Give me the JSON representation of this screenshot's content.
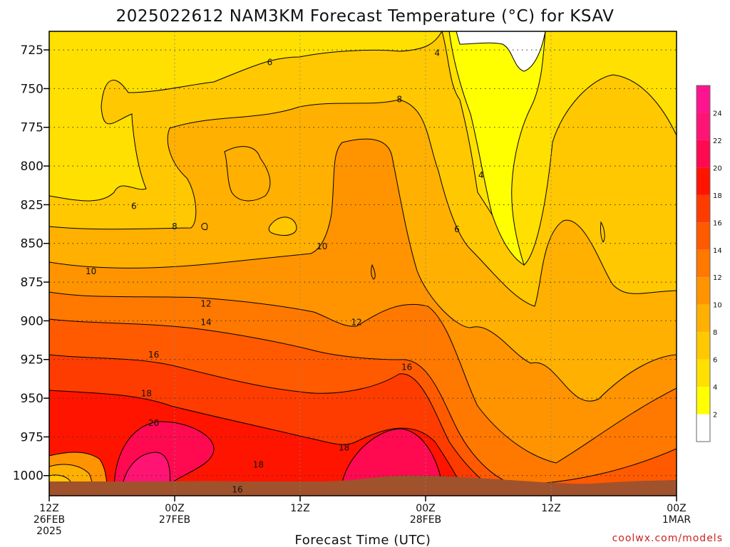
{
  "chart_data": {
    "type": "contour",
    "title": "2025022612 NAM3KM Forecast Temperature (°C) for KSAV",
    "xlabel": "Forecast Time (UTC)",
    "ylabel": "",
    "x_ticks": [
      {
        "hour": 0,
        "lines": [
          "12Z",
          "26FEB",
          "2025"
        ]
      },
      {
        "hour": 12,
        "lines": [
          "00Z",
          "27FEB"
        ]
      },
      {
        "hour": 24,
        "lines": [
          "12Z"
        ]
      },
      {
        "hour": 36,
        "lines": [
          "00Z",
          "28FEB"
        ]
      },
      {
        "hour": 48,
        "lines": [
          "12Z"
        ]
      },
      {
        "hour": 60,
        "lines": [
          "00Z",
          "1MAR"
        ]
      }
    ],
    "xlim_hours": [
      0,
      60
    ],
    "y_ticks": [
      725,
      750,
      775,
      800,
      825,
      850,
      875,
      900,
      925,
      950,
      975,
      1000
    ],
    "ylim_hpa": [
      713,
      1013
    ],
    "y_direction": "pressure increases downward",
    "grid": "dotted",
    "colorbar": {
      "levels": [
        2,
        4,
        6,
        8,
        10,
        12,
        14,
        16,
        18,
        20,
        22,
        24
      ],
      "colors": [
        "#ffffff",
        "#ffff00",
        "#ffe000",
        "#ffc800",
        "#ffb000",
        "#ff9400",
        "#ff7800",
        "#ff5a00",
        "#ff3c00",
        "#ff1400",
        "#ff0a50",
        "#ff1474",
        "#ff1490"
      ],
      "placement": "right"
    },
    "contour_labels": [
      {
        "text": "4",
        "hour": 37.1,
        "hpa": 727
      },
      {
        "text": "4",
        "hour": 41.3,
        "hpa": 806
      },
      {
        "text": "6",
        "hour": 21.1,
        "hpa": 733
      },
      {
        "text": "6",
        "hour": 8.1,
        "hpa": 826
      },
      {
        "text": "6",
        "hour": 39.0,
        "hpa": 841
      },
      {
        "text": "8",
        "hour": 33.5,
        "hpa": 757
      },
      {
        "text": "8",
        "hour": 12.0,
        "hpa": 839
      },
      {
        "text": "10",
        "hour": 4.0,
        "hpa": 868
      },
      {
        "text": "10",
        "hour": 26.1,
        "hpa": 852
      },
      {
        "text": "12",
        "hour": 15.0,
        "hpa": 889
      },
      {
        "text": "12",
        "hour": 29.4,
        "hpa": 901
      },
      {
        "text": "14",
        "hour": 15.0,
        "hpa": 901
      },
      {
        "text": "16",
        "hour": 10.0,
        "hpa": 922
      },
      {
        "text": "16",
        "hour": 34.2,
        "hpa": 930
      },
      {
        "text": "18",
        "hour": 9.3,
        "hpa": 947
      },
      {
        "text": "18",
        "hour": 28.2,
        "hpa": 982
      },
      {
        "text": "18",
        "hour": 20.0,
        "hpa": 993
      },
      {
        "text": "20",
        "hour": 10.0,
        "hpa": 966
      },
      {
        "text": "16",
        "hour": 18.0,
        "hpa": 1009
      }
    ],
    "ground": {
      "color": "#a0522d",
      "description": "terrain below surface near 1010 hPa"
    }
  },
  "credit": "coolwx.com/models"
}
